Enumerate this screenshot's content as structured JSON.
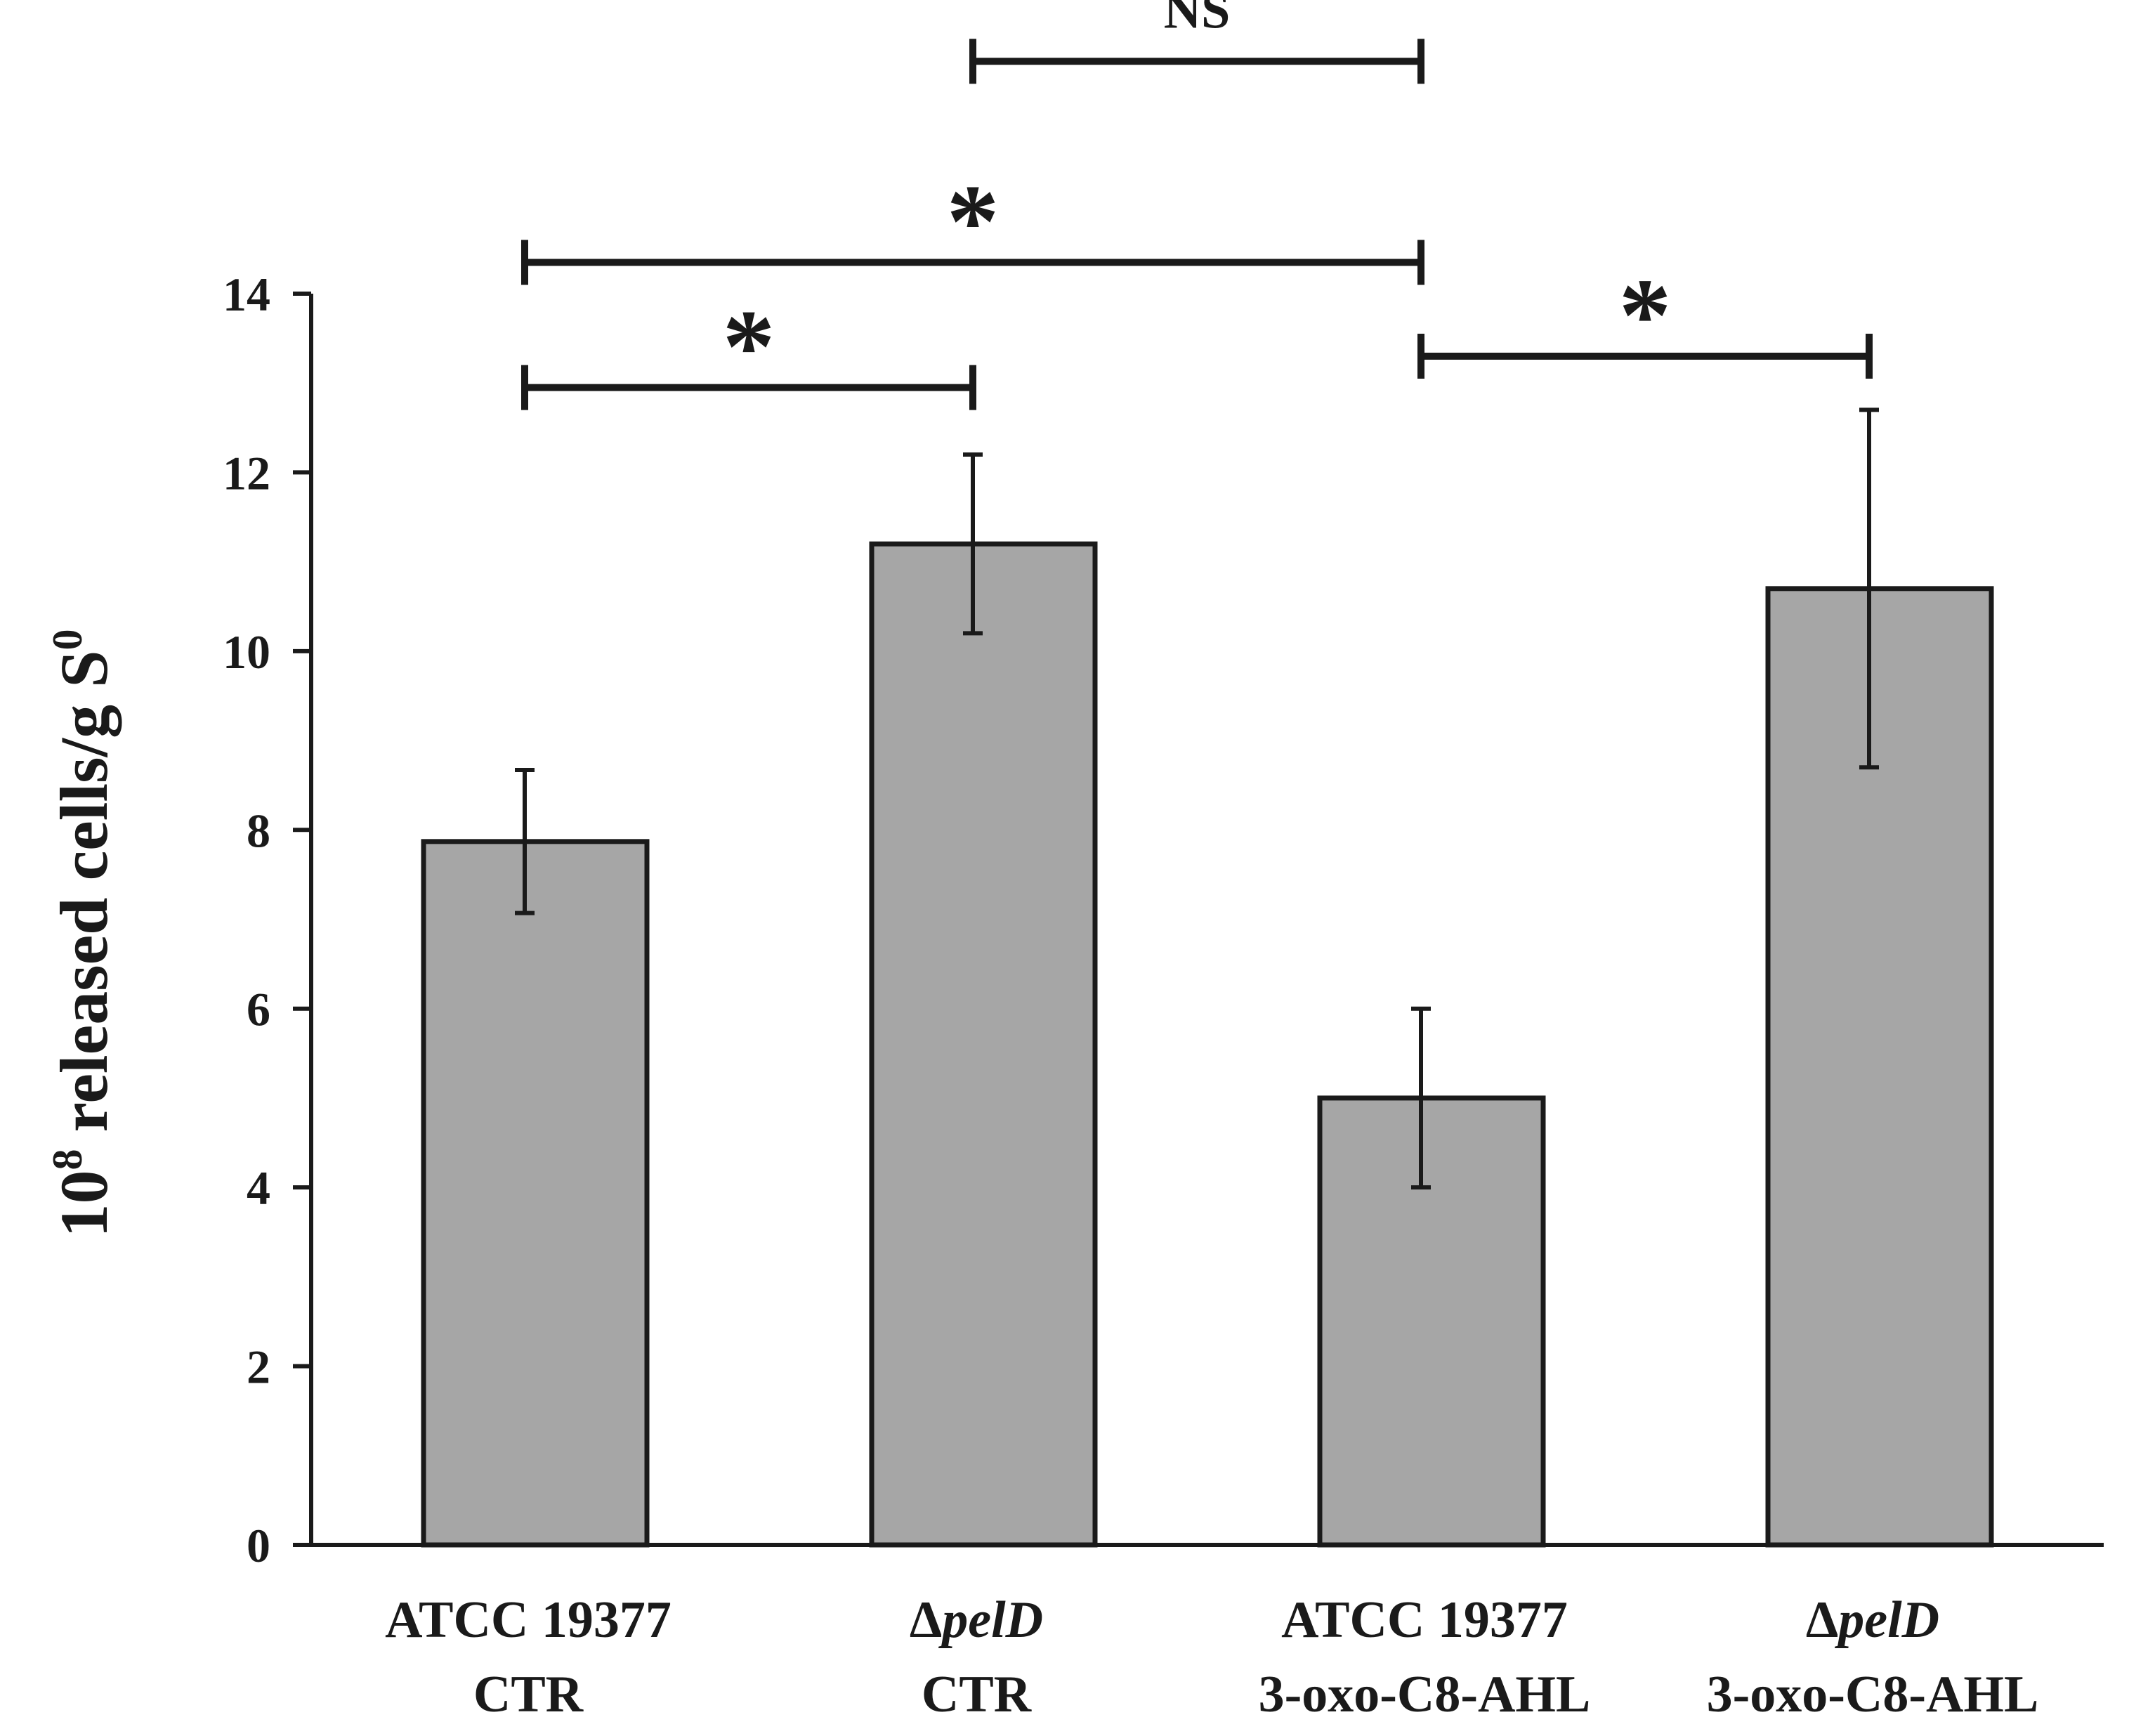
{
  "chart_data": {
    "type": "bar",
    "title": "",
    "xlabel": "",
    "ylabel": {
      "base": "10",
      "exp": "8",
      "middle": " released cells/g S",
      "suffix_sup": "0"
    },
    "ylim": [
      0,
      14
    ],
    "yticks": [
      "0",
      "2",
      "4",
      "6",
      "8",
      "10",
      "12",
      "14"
    ],
    "grid": false,
    "bar_color": "#a6a6a6",
    "categories": [
      {
        "prefix": "",
        "strain": "ATCC 19377",
        "condition": "CTR"
      },
      {
        "prefix": "Δ",
        "strain": "pelD",
        "condition": "CTR"
      },
      {
        "prefix": "",
        "strain": "ATCC 19377",
        "condition": "3-oxo-C8-AHL"
      },
      {
        "prefix": "Δ",
        "strain": "pelD",
        "condition": "3-oxo-C8-AHL"
      }
    ],
    "values": [
      7.87,
      11.2,
      5.0,
      10.7
    ],
    "error": [
      0.8,
      1.0,
      1.0,
      2.0
    ],
    "significance": [
      {
        "from": 1,
        "to": 2,
        "label": "NS",
        "level": 16.6
      },
      {
        "from": 0,
        "to": 2,
        "label": "*",
        "level": 14.35
      },
      {
        "from": 0,
        "to": 1,
        "label": "*",
        "level": 12.95
      },
      {
        "from": 2,
        "to": 3,
        "label": "*",
        "level": 13.3
      }
    ]
  }
}
